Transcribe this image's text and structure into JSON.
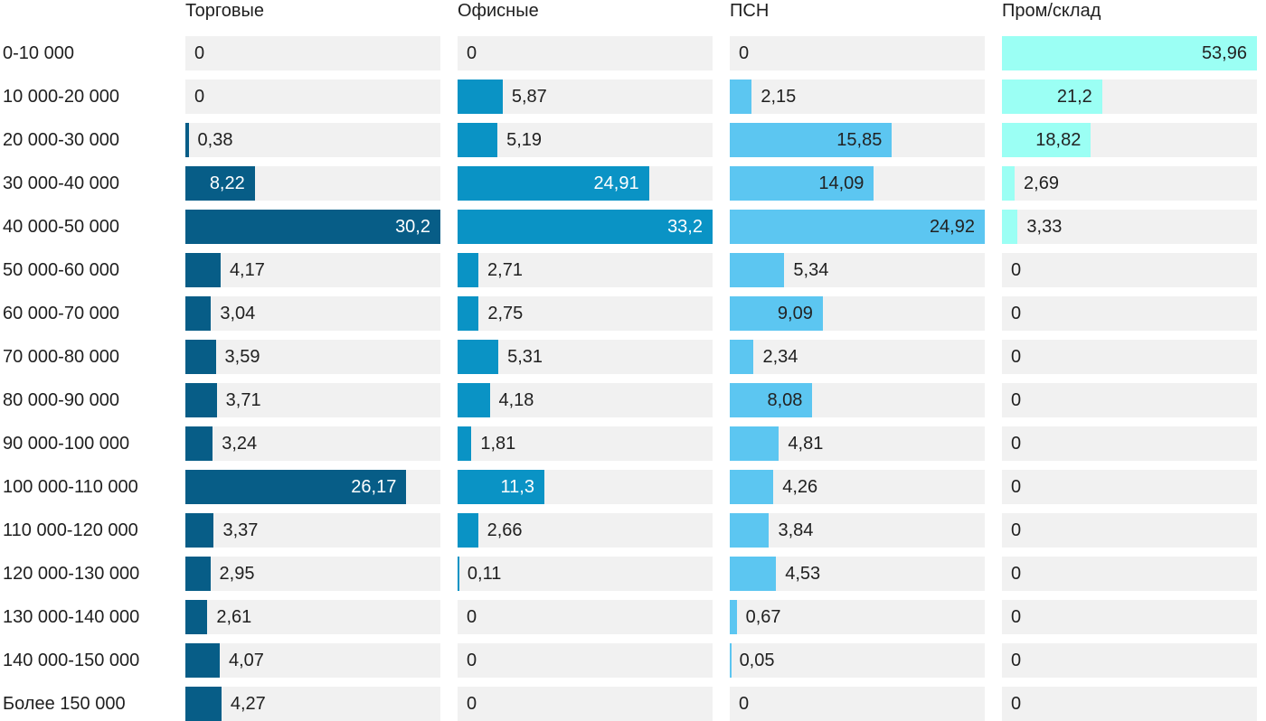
{
  "chart_data": {
    "type": "bar",
    "orientation": "horizontal",
    "scaling": "each column scaled to its own max value",
    "decimal_separator": ",",
    "track_color": "#f1f1f1",
    "text_color": "#1f1f1f",
    "categories": [
      "0-10 000",
      "10 000-20 000",
      "20 000-30 000",
      "30 000-40 000",
      "40 000-50 000",
      "50 000-60 000",
      "60 000-70 000",
      "70 000-80 000",
      "80 000-90 000",
      "90 000-100 000",
      "100 000-110 000",
      "110 000-120 000",
      "120 000-130 000",
      "130 000-140 000",
      "140 000-150 000",
      "Более 150 000"
    ],
    "series": [
      {
        "name": "Торговые",
        "color": "#075d87",
        "label_color_inside": "#ffffff",
        "values": [
          0,
          0,
          0.38,
          8.22,
          30.2,
          4.17,
          3.04,
          3.59,
          3.71,
          3.24,
          26.17,
          3.37,
          2.95,
          2.61,
          4.07,
          4.27
        ]
      },
      {
        "name": "Офисные",
        "color": "#0a93c5",
        "label_color_inside": "#ffffff",
        "values": [
          0,
          5.87,
          5.19,
          24.91,
          33.2,
          2.71,
          2.75,
          5.31,
          4.18,
          1.81,
          11.3,
          2.66,
          0.11,
          0,
          0,
          0
        ]
      },
      {
        "name": "ПСН",
        "color": "#5cc6f1",
        "label_color_inside": "#222222",
        "values": [
          0,
          2.15,
          15.85,
          14.09,
          24.92,
          5.34,
          9.09,
          2.34,
          8.08,
          4.81,
          4.26,
          3.84,
          4.53,
          0.67,
          0.05,
          0
        ]
      },
      {
        "name": "Пром/склад",
        "color": "#9bfff4",
        "label_color_inside": "#222222",
        "values": [
          53.96,
          21.2,
          18.82,
          2.69,
          3.33,
          0,
          0,
          0,
          0,
          0,
          0,
          0,
          0,
          0,
          0,
          0
        ]
      }
    ]
  }
}
